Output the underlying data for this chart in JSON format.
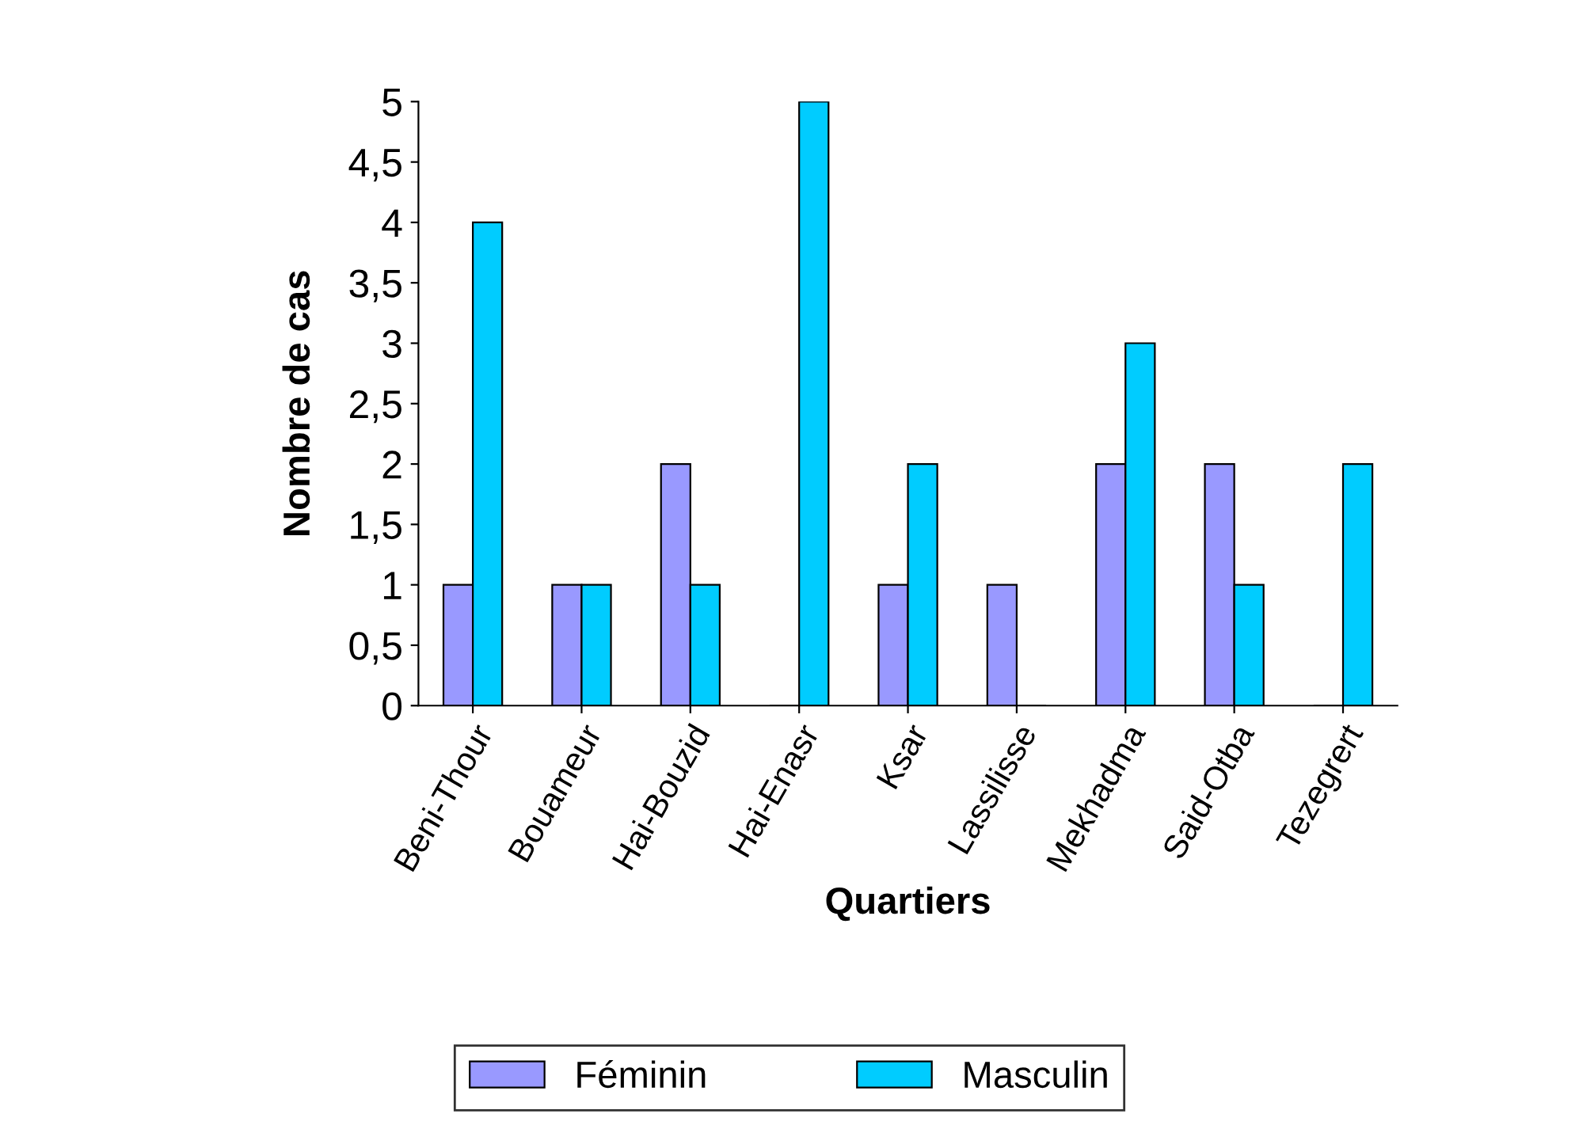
{
  "chart_data": {
    "type": "bar",
    "xlabel": "Quartiers",
    "ylabel": "Nombre de cas",
    "categories": [
      "Beni-Thour",
      "Bouameur",
      "Hai-Bouzid",
      "Hai-Enasr",
      "Ksar",
      "Lassilisse",
      "Mekhadma",
      "Said-Otba",
      "Tezegrert"
    ],
    "series": [
      {
        "name": "Féminin",
        "color": "#9999ff",
        "values": [
          1,
          1,
          2,
          0,
          1,
          1,
          2,
          2,
          0
        ]
      },
      {
        "name": "Masculin",
        "color": "#00ccff",
        "values": [
          4,
          1,
          1,
          5,
          2,
          0,
          3,
          1,
          2
        ]
      }
    ],
    "ylim": [
      0,
      5
    ],
    "yticks": [
      0,
      {
        "value": 0.5,
        "label": "0,5"
      },
      1,
      {
        "value": 1.5,
        "label": "1,5"
      },
      2,
      {
        "value": 2.5,
        "label": "2,5"
      },
      3,
      {
        "value": 3.5,
        "label": "3,5"
      },
      4,
      {
        "value": 4.5,
        "label": "4,5"
      },
      5
    ],
    "grid": false,
    "legend": "bottom"
  }
}
